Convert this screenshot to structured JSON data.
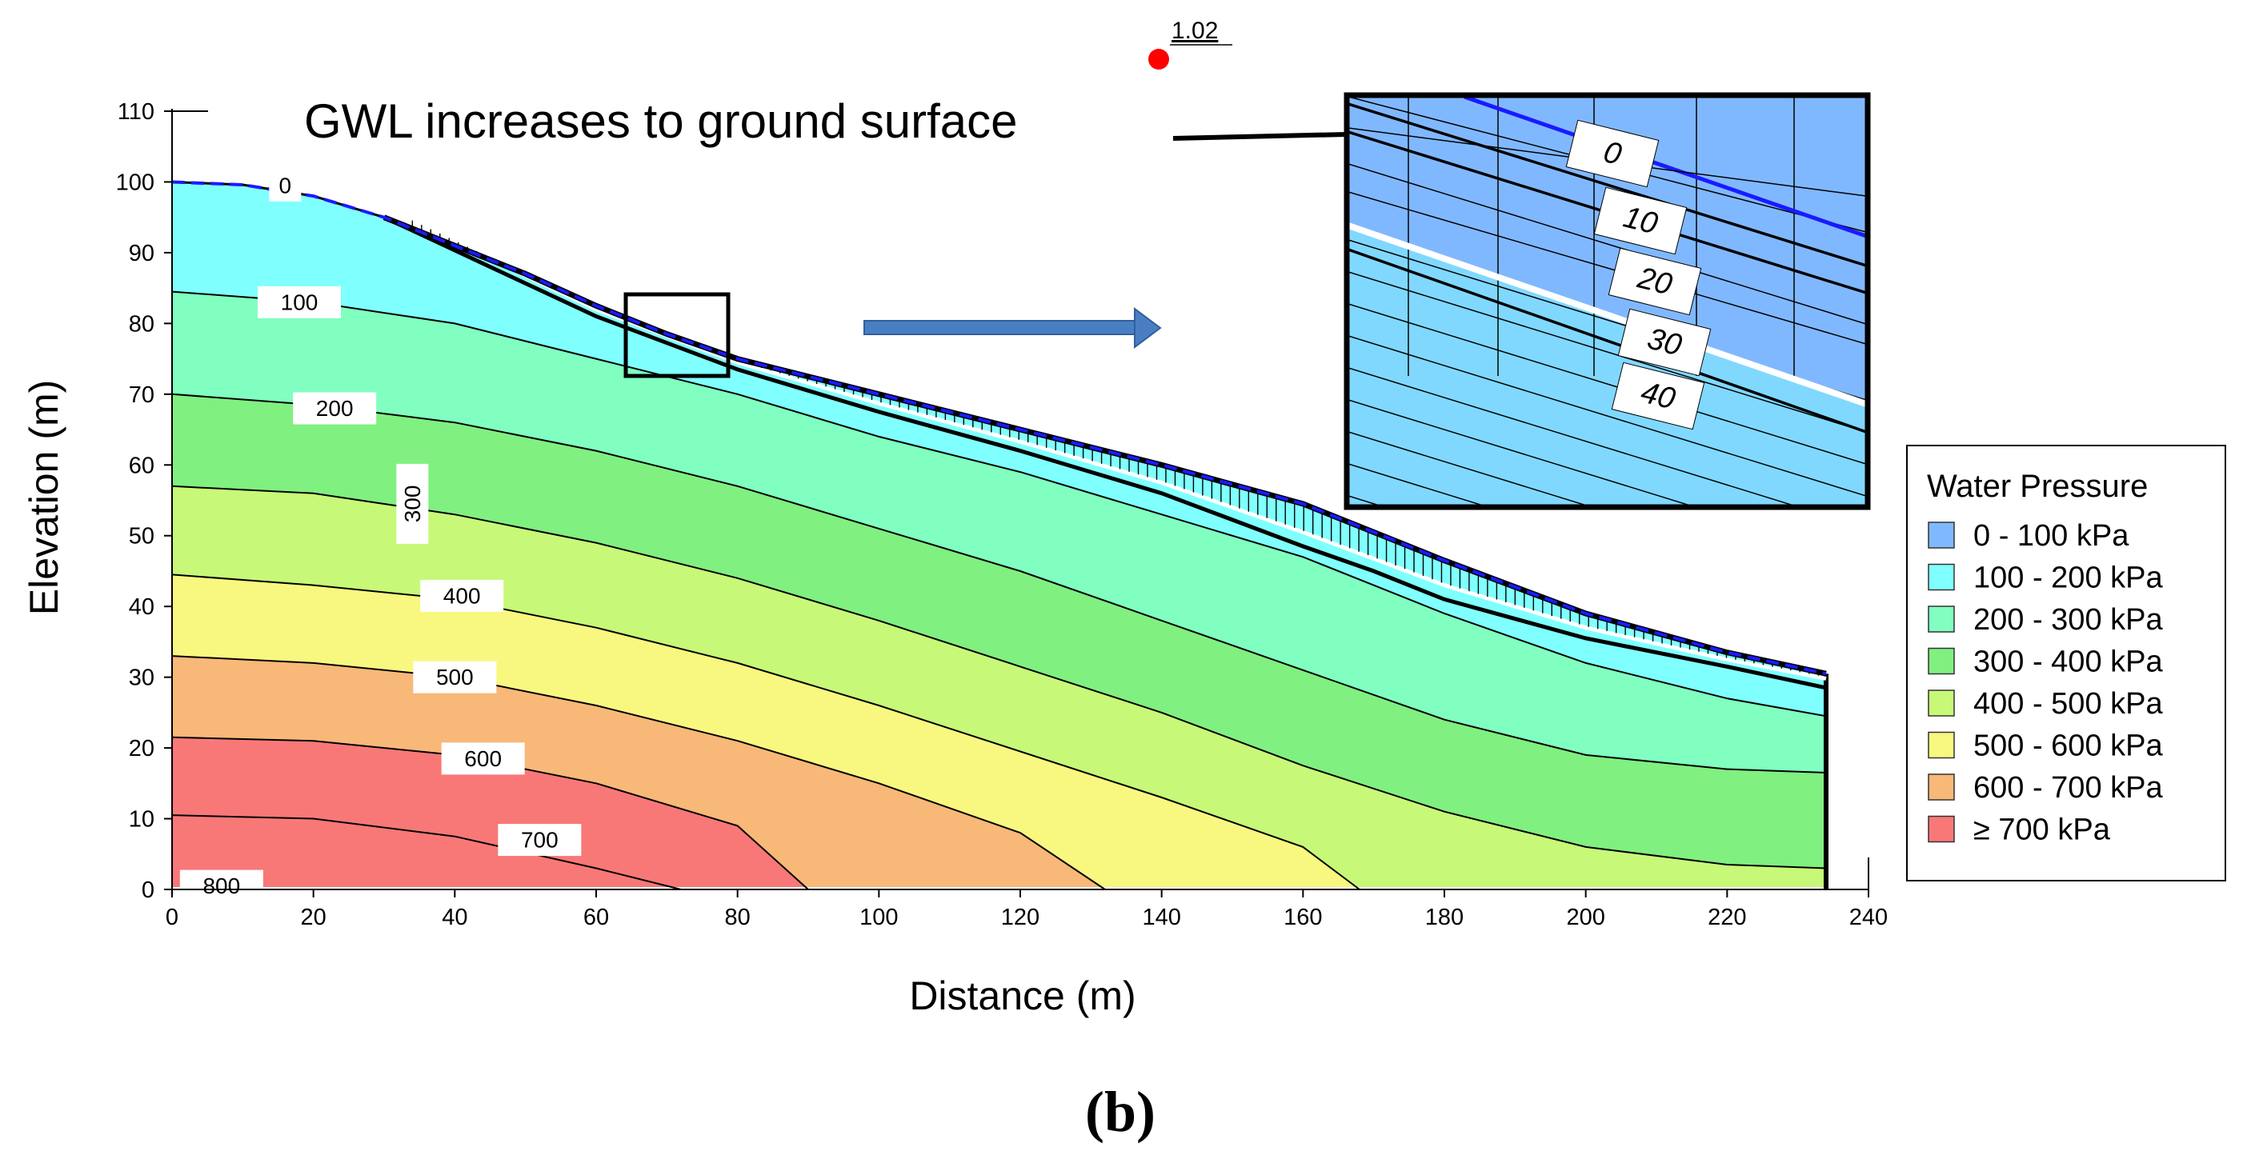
{
  "chart_data": {
    "type": "contour",
    "title": "",
    "xlabel": "Distance (m)",
    "ylabel": "Elevation (m)",
    "xlim": [
      0,
      240
    ],
    "ylim": [
      0,
      110
    ],
    "xticks": [
      0,
      20,
      40,
      60,
      80,
      100,
      120,
      140,
      160,
      180,
      200,
      220,
      240
    ],
    "yticks": [
      0,
      10,
      20,
      30,
      40,
      50,
      60,
      70,
      80,
      90,
      100,
      110
    ],
    "ground_surface": [
      [
        0,
        100
      ],
      [
        10,
        99.6
      ],
      [
        20,
        98
      ],
      [
        30,
        95
      ],
      [
        40,
        91
      ],
      [
        50,
        87
      ],
      [
        60,
        82.5
      ],
      [
        70,
        78.5
      ],
      [
        80,
        75
      ],
      [
        100,
        70
      ],
      [
        120,
        65
      ],
      [
        140,
        60
      ],
      [
        160,
        54.5
      ],
      [
        180,
        46.5
      ],
      [
        200,
        39
      ],
      [
        220,
        33.5
      ],
      [
        234,
        30.5
      ]
    ],
    "factor_of_safety": {
      "label": "1.02",
      "x": 140,
      "y": 117
    },
    "legend": {
      "title": "Water Pressure",
      "entries": [
        {
          "label": "0 - 100 kPa",
          "color": "#80b8ff"
        },
        {
          "label": "100 - 200 kPa",
          "color": "#80ffff"
        },
        {
          "label": "200 - 300 kPa",
          "color": "#80ffc0"
        },
        {
          "label": "300 - 400 kPa",
          "color": "#80f080"
        },
        {
          "label": "400 - 500 kPa",
          "color": "#c8f878"
        },
        {
          "label": "500 - 600 kPa",
          "color": "#f8f880"
        },
        {
          "label": "600 - 700 kPa",
          "color": "#f8b878"
        },
        {
          "label": "≥ 700 kPa",
          "color": "#f87878"
        }
      ]
    },
    "contours": [
      {
        "level": "0",
        "label": "0",
        "label_at": [
          16,
          99.5
        ],
        "points": [
          [
            0,
            100
          ],
          [
            10,
            99.6
          ],
          [
            20,
            98
          ],
          [
            30,
            95
          ],
          [
            40,
            91
          ],
          [
            50,
            87
          ],
          [
            60,
            82.5
          ],
          [
            70,
            78.5
          ],
          [
            80,
            75
          ],
          [
            100,
            70
          ],
          [
            120,
            65
          ],
          [
            140,
            60
          ],
          [
            160,
            54.5
          ],
          [
            180,
            46.5
          ],
          [
            200,
            39
          ],
          [
            220,
            33.5
          ],
          [
            234,
            30.5
          ]
        ]
      },
      {
        "level": "100",
        "label": "100",
        "label_at": [
          18,
          83
        ],
        "points": [
          [
            0,
            84.5
          ],
          [
            20,
            83
          ],
          [
            40,
            80
          ],
          [
            60,
            75
          ],
          [
            80,
            70
          ],
          [
            100,
            64
          ],
          [
            120,
            59
          ],
          [
            140,
            53
          ],
          [
            160,
            47
          ],
          [
            180,
            39
          ],
          [
            200,
            32
          ],
          [
            220,
            27
          ],
          [
            234,
            24.5
          ]
        ]
      },
      {
        "level": "200",
        "label": "200",
        "label_at": [
          23,
          68
        ],
        "points": [
          [
            0,
            70
          ],
          [
            20,
            68.5
          ],
          [
            40,
            66
          ],
          [
            60,
            62
          ],
          [
            80,
            57
          ],
          [
            100,
            51
          ],
          [
            120,
            45
          ],
          [
            140,
            38
          ],
          [
            160,
            31
          ],
          [
            180,
            24
          ],
          [
            200,
            19
          ],
          [
            220,
            17
          ],
          [
            234,
            16.5
          ]
        ]
      },
      {
        "level": "300",
        "label": "300",
        "label_at": [
          34,
          54.5
        ],
        "vertical": true,
        "points": [
          [
            0,
            57
          ],
          [
            20,
            56
          ],
          [
            40,
            53
          ],
          [
            60,
            49
          ],
          [
            80,
            44
          ],
          [
            100,
            38
          ],
          [
            120,
            31.5
          ],
          [
            140,
            25
          ],
          [
            160,
            17.5
          ],
          [
            180,
            11
          ],
          [
            200,
            6
          ],
          [
            220,
            3.5
          ],
          [
            234,
            3
          ]
        ]
      },
      {
        "level": "400",
        "label": "400",
        "label_at": [
          41,
          41.5
        ],
        "points": [
          [
            0,
            44.5
          ],
          [
            20,
            43
          ],
          [
            40,
            41
          ],
          [
            60,
            37
          ],
          [
            80,
            32
          ],
          [
            100,
            26
          ],
          [
            120,
            19.5
          ],
          [
            140,
            13
          ],
          [
            160,
            6
          ],
          [
            168,
            0
          ]
        ]
      },
      {
        "level": "500",
        "label": "500",
        "label_at": [
          40,
          30
        ],
        "points": [
          [
            0,
            33
          ],
          [
            20,
            32
          ],
          [
            40,
            30
          ],
          [
            60,
            26
          ],
          [
            80,
            21
          ],
          [
            100,
            15
          ],
          [
            120,
            8
          ],
          [
            132,
            0
          ]
        ]
      },
      {
        "level": "600",
        "label": "600",
        "label_at": [
          44,
          18.5
        ],
        "points": [
          [
            0,
            21.5
          ],
          [
            20,
            21
          ],
          [
            40,
            19
          ],
          [
            60,
            15
          ],
          [
            80,
            9
          ],
          [
            90,
            0
          ]
        ]
      },
      {
        "level": "700",
        "label": "700",
        "label_at": [
          52,
          7
        ],
        "points": [
          [
            0,
            10.5
          ],
          [
            20,
            10
          ],
          [
            40,
            7.5
          ],
          [
            60,
            3
          ],
          [
            72,
            0
          ]
        ]
      },
      {
        "level": "800",
        "label": "800",
        "label_at": [
          7,
          0.5
        ],
        "points": []
      }
    ],
    "annotations": {
      "gwl_text": "GWL increases to ground surface",
      "inset_labels": [
        "0",
        "10",
        "20",
        "30",
        "40"
      ]
    },
    "caption": "(b)"
  }
}
